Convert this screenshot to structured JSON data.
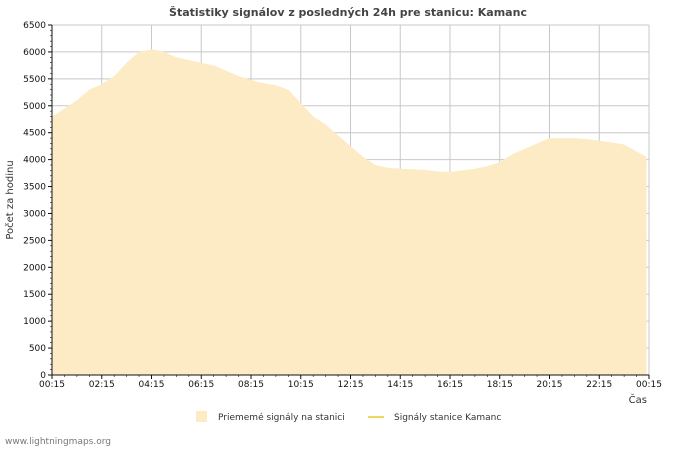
{
  "footer": {
    "site": "www.lightningmaps.org"
  },
  "colors": {
    "area_fill": "#fdebc5",
    "line": "#f0d860",
    "grid": "#c8c8c8",
    "axis": "#111111"
  },
  "chart_data": {
    "type": "area",
    "title": "Štatistiky signálov z posledných 24h pre stanicu: Kamanc",
    "xlabel": "Čas",
    "ylabel": "Počet za hodinu",
    "ylim": [
      0,
      6500
    ],
    "y_ticks": [
      "0",
      "500",
      "1000",
      "1500",
      "2000",
      "2500",
      "3000",
      "3500",
      "4000",
      "4500",
      "5000",
      "5500",
      "6000",
      "6500"
    ],
    "x_ticks": [
      "00:15",
      "02:15",
      "04:15",
      "06:15",
      "08:15",
      "10:15",
      "12:15",
      "14:15",
      "16:15",
      "18:15",
      "20:15",
      "22:15",
      "00:15"
    ],
    "x_range": [
      0,
      24
    ],
    "legend": [
      {
        "label": "Priememé signály na stanici",
        "kind": "area"
      },
      {
        "label": "Signály stanice Kamanc",
        "kind": "line"
      }
    ],
    "series": [
      {
        "name": "Priememé signály na stanici",
        "x": [
          0,
          0.5,
          1,
          1.5,
          2,
          2.5,
          3,
          3.5,
          4,
          4.5,
          5,
          5.5,
          6,
          6.5,
          7,
          7.5,
          8,
          8.5,
          9,
          9.5,
          10,
          10.5,
          11,
          11.5,
          12,
          12.5,
          13,
          13.5,
          14,
          14.5,
          15,
          15.5,
          16,
          16.5,
          17,
          17.5,
          18,
          18.5,
          19,
          19.5,
          20,
          20.5,
          21,
          21.5,
          22,
          22.5,
          23,
          23.5,
          23.9
        ],
        "values": [
          4800,
          4950,
          5100,
          5300,
          5400,
          5550,
          5800,
          6000,
          6050,
          6000,
          5900,
          5850,
          5800,
          5750,
          5650,
          5550,
          5480,
          5420,
          5380,
          5300,
          5050,
          4800,
          4650,
          4450,
          4250,
          4050,
          3900,
          3850,
          3830,
          3820,
          3810,
          3780,
          3770,
          3800,
          3830,
          3880,
          3950,
          4100,
          4200,
          4300,
          4400,
          4400,
          4400,
          4380,
          4350,
          4320,
          4280,
          4150,
          4050
        ]
      },
      {
        "name": "Signály stanice Kamanc",
        "x": [],
        "values": []
      }
    ]
  }
}
